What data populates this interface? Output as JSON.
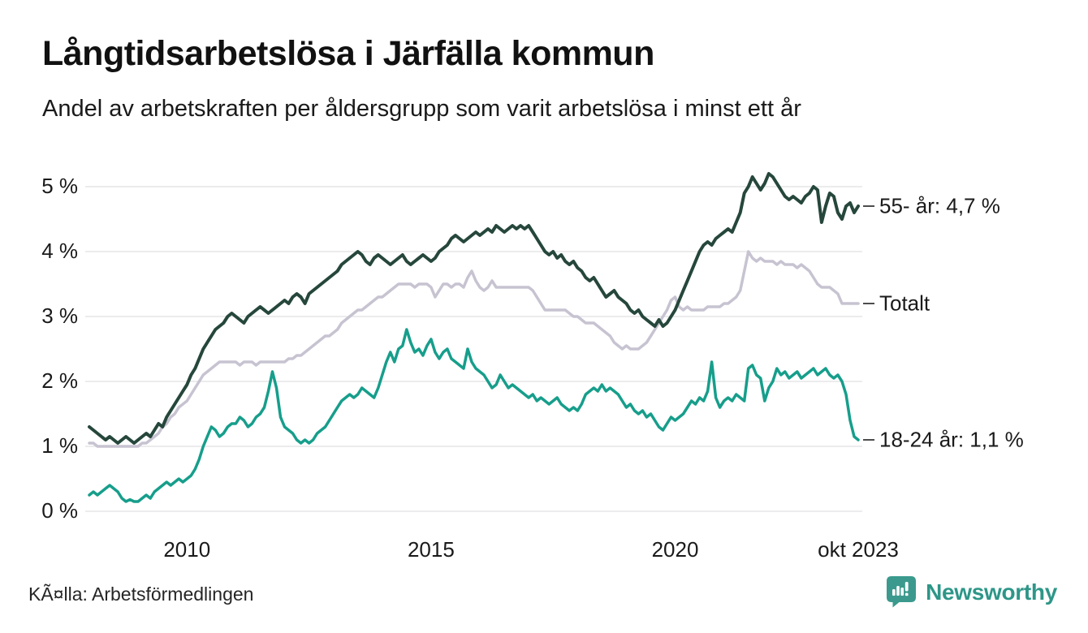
{
  "header": {
    "title": "Långtidsarbetslösa i Järfälla kommun",
    "subtitle": "Andel av arbetskraften per åldersgrupp som varit arbetslösa i minst ett år"
  },
  "footer": {
    "source": "KÃ¤lla: Arbetsförmedlingen",
    "brand": "Newsworthy"
  },
  "colors": {
    "grid": "#e5e5e9",
    "leader_dash": "#4d4d4d",
    "brand_teal": "#3b9a8d"
  },
  "chart_data": {
    "type": "line",
    "title": "Långtidsarbetslösa i Järfälla kommun",
    "subtitle": "Andel av arbetskraften per åldersgrupp som varit arbetslösa i minst ett år",
    "x_unit": "month",
    "x_start": "2008-01",
    "x_end": "2023-10",
    "grid": "horizontal",
    "legend_position": "right-annotations",
    "ylim": [
      0,
      5.4
    ],
    "y_ticks": [
      {
        "label": "0 %",
        "value": 0
      },
      {
        "label": "1 %",
        "value": 1
      },
      {
        "label": "2 %",
        "value": 2
      },
      {
        "label": "3 %",
        "value": 3
      },
      {
        "label": "4 %",
        "value": 4
      },
      {
        "label": "5 %",
        "value": 5
      }
    ],
    "x_ticks": [
      {
        "label": "2010",
        "month": 24
      },
      {
        "label": "2015",
        "month": 84
      },
      {
        "label": "2020",
        "month": 144
      },
      {
        "label": "okt 2023",
        "month": 189
      }
    ],
    "series": [
      {
        "name": "Totalt",
        "label": "Totalt",
        "color": "#c7c3d1",
        "stroke_width": 3.5,
        "values": [
          1.05,
          1.05,
          1.0,
          1.0,
          1.0,
          1.0,
          1.0,
          1.0,
          1.0,
          1.0,
          1.0,
          1.0,
          1.0,
          1.05,
          1.05,
          1.1,
          1.15,
          1.2,
          1.3,
          1.35,
          1.45,
          1.5,
          1.6,
          1.65,
          1.7,
          1.8,
          1.9,
          2.0,
          2.1,
          2.15,
          2.2,
          2.25,
          2.3,
          2.3,
          2.3,
          2.3,
          2.3,
          2.25,
          2.3,
          2.3,
          2.3,
          2.25,
          2.3,
          2.3,
          2.3,
          2.3,
          2.3,
          2.3,
          2.3,
          2.35,
          2.35,
          2.4,
          2.4,
          2.45,
          2.5,
          2.55,
          2.6,
          2.65,
          2.7,
          2.7,
          2.75,
          2.8,
          2.9,
          2.95,
          3.0,
          3.05,
          3.1,
          3.1,
          3.15,
          3.2,
          3.25,
          3.3,
          3.3,
          3.35,
          3.4,
          3.45,
          3.5,
          3.5,
          3.5,
          3.5,
          3.45,
          3.5,
          3.5,
          3.5,
          3.45,
          3.3,
          3.4,
          3.5,
          3.5,
          3.45,
          3.5,
          3.5,
          3.45,
          3.6,
          3.7,
          3.55,
          3.45,
          3.4,
          3.45,
          3.55,
          3.45,
          3.45,
          3.45,
          3.45,
          3.45,
          3.45,
          3.45,
          3.45,
          3.45,
          3.4,
          3.3,
          3.2,
          3.1,
          3.1,
          3.1,
          3.1,
          3.1,
          3.1,
          3.05,
          3.0,
          3.0,
          2.95,
          2.9,
          2.9,
          2.9,
          2.85,
          2.8,
          2.75,
          2.7,
          2.6,
          2.55,
          2.5,
          2.55,
          2.5,
          2.5,
          2.5,
          2.55,
          2.6,
          2.7,
          2.8,
          2.9,
          3.0,
          3.1,
          3.25,
          3.3,
          3.15,
          3.1,
          3.15,
          3.1,
          3.1,
          3.1,
          3.1,
          3.15,
          3.15,
          3.15,
          3.15,
          3.2,
          3.2,
          3.25,
          3.3,
          3.4,
          3.7,
          4.0,
          3.9,
          3.85,
          3.9,
          3.85,
          3.85,
          3.85,
          3.8,
          3.85,
          3.8,
          3.8,
          3.8,
          3.75,
          3.8,
          3.75,
          3.7,
          3.6,
          3.5,
          3.45,
          3.45,
          3.45,
          3.4,
          3.35,
          3.2,
          3.2,
          3.2,
          3.2,
          3.2
        ]
      },
      {
        "name": "55- år",
        "label": "55- år: 4,7 %",
        "color": "#26473b",
        "stroke_width": 4,
        "values": [
          1.3,
          1.25,
          1.2,
          1.15,
          1.1,
          1.15,
          1.1,
          1.05,
          1.1,
          1.15,
          1.1,
          1.05,
          1.1,
          1.15,
          1.2,
          1.15,
          1.25,
          1.35,
          1.3,
          1.45,
          1.55,
          1.65,
          1.75,
          1.85,
          1.95,
          2.1,
          2.2,
          2.35,
          2.5,
          2.6,
          2.7,
          2.8,
          2.85,
          2.9,
          3.0,
          3.05,
          3.0,
          2.95,
          2.9,
          3.0,
          3.05,
          3.1,
          3.15,
          3.1,
          3.05,
          3.1,
          3.15,
          3.2,
          3.25,
          3.2,
          3.3,
          3.35,
          3.3,
          3.2,
          3.35,
          3.4,
          3.45,
          3.5,
          3.55,
          3.6,
          3.65,
          3.7,
          3.8,
          3.85,
          3.9,
          3.95,
          4.0,
          3.95,
          3.85,
          3.8,
          3.9,
          3.95,
          3.9,
          3.85,
          3.8,
          3.85,
          3.9,
          3.95,
          3.85,
          3.8,
          3.85,
          3.9,
          3.95,
          3.9,
          3.85,
          3.9,
          4.0,
          4.05,
          4.1,
          4.2,
          4.25,
          4.2,
          4.15,
          4.2,
          4.25,
          4.3,
          4.25,
          4.3,
          4.35,
          4.3,
          4.4,
          4.35,
          4.3,
          4.35,
          4.4,
          4.35,
          4.4,
          4.35,
          4.4,
          4.3,
          4.2,
          4.1,
          4.0,
          3.95,
          4.0,
          3.9,
          3.95,
          3.85,
          3.8,
          3.85,
          3.75,
          3.7,
          3.6,
          3.55,
          3.6,
          3.5,
          3.4,
          3.3,
          3.35,
          3.4,
          3.3,
          3.25,
          3.2,
          3.1,
          3.05,
          3.1,
          3.0,
          2.95,
          2.9,
          2.85,
          2.95,
          2.85,
          2.9,
          3.0,
          3.1,
          3.25,
          3.4,
          3.55,
          3.7,
          3.85,
          4.0,
          4.1,
          4.15,
          4.1,
          4.2,
          4.25,
          4.3,
          4.35,
          4.3,
          4.45,
          4.6,
          4.9,
          5.0,
          5.15,
          5.05,
          4.95,
          5.05,
          5.2,
          5.15,
          5.05,
          4.95,
          4.85,
          4.8,
          4.85,
          4.8,
          4.75,
          4.85,
          4.9,
          5.0,
          4.95,
          4.45,
          4.7,
          4.9,
          4.85,
          4.6,
          4.5,
          4.7,
          4.75,
          4.6,
          4.7
        ]
      },
      {
        "name": "18-24 år",
        "label": "18-24 år: 1,1 %",
        "color": "#169e8b",
        "stroke_width": 3.5,
        "values": [
          0.25,
          0.3,
          0.25,
          0.3,
          0.35,
          0.4,
          0.35,
          0.3,
          0.2,
          0.15,
          0.18,
          0.15,
          0.15,
          0.2,
          0.25,
          0.2,
          0.3,
          0.35,
          0.4,
          0.45,
          0.4,
          0.45,
          0.5,
          0.45,
          0.5,
          0.55,
          0.65,
          0.8,
          1.0,
          1.15,
          1.3,
          1.25,
          1.15,
          1.2,
          1.3,
          1.35,
          1.35,
          1.45,
          1.4,
          1.3,
          1.35,
          1.45,
          1.5,
          1.6,
          1.85,
          2.15,
          1.9,
          1.45,
          1.3,
          1.25,
          1.2,
          1.1,
          1.05,
          1.1,
          1.05,
          1.1,
          1.2,
          1.25,
          1.3,
          1.4,
          1.5,
          1.6,
          1.7,
          1.75,
          1.8,
          1.75,
          1.8,
          1.9,
          1.85,
          1.8,
          1.75,
          1.9,
          2.1,
          2.3,
          2.45,
          2.3,
          2.5,
          2.55,
          2.8,
          2.6,
          2.45,
          2.5,
          2.4,
          2.55,
          2.65,
          2.45,
          2.35,
          2.45,
          2.5,
          2.35,
          2.3,
          2.25,
          2.2,
          2.5,
          2.3,
          2.2,
          2.15,
          2.1,
          2.0,
          1.9,
          1.95,
          2.1,
          2.0,
          1.9,
          1.95,
          1.9,
          1.85,
          1.8,
          1.75,
          1.8,
          1.7,
          1.75,
          1.7,
          1.65,
          1.7,
          1.75,
          1.65,
          1.6,
          1.55,
          1.6,
          1.55,
          1.65,
          1.8,
          1.85,
          1.9,
          1.85,
          1.95,
          1.85,
          1.9,
          1.85,
          1.8,
          1.7,
          1.6,
          1.65,
          1.55,
          1.5,
          1.55,
          1.45,
          1.5,
          1.4,
          1.3,
          1.25,
          1.35,
          1.45,
          1.4,
          1.45,
          1.5,
          1.6,
          1.7,
          1.65,
          1.75,
          1.7,
          1.85,
          2.3,
          1.75,
          1.6,
          1.7,
          1.75,
          1.7,
          1.8,
          1.75,
          1.7,
          2.2,
          2.25,
          2.1,
          2.05,
          1.7,
          1.9,
          2.0,
          2.2,
          2.1,
          2.15,
          2.05,
          2.1,
          2.15,
          2.05,
          2.1,
          2.15,
          2.2,
          2.1,
          2.15,
          2.2,
          2.1,
          2.05,
          2.1,
          2.0,
          1.8,
          1.4,
          1.15,
          1.1
        ]
      }
    ]
  }
}
